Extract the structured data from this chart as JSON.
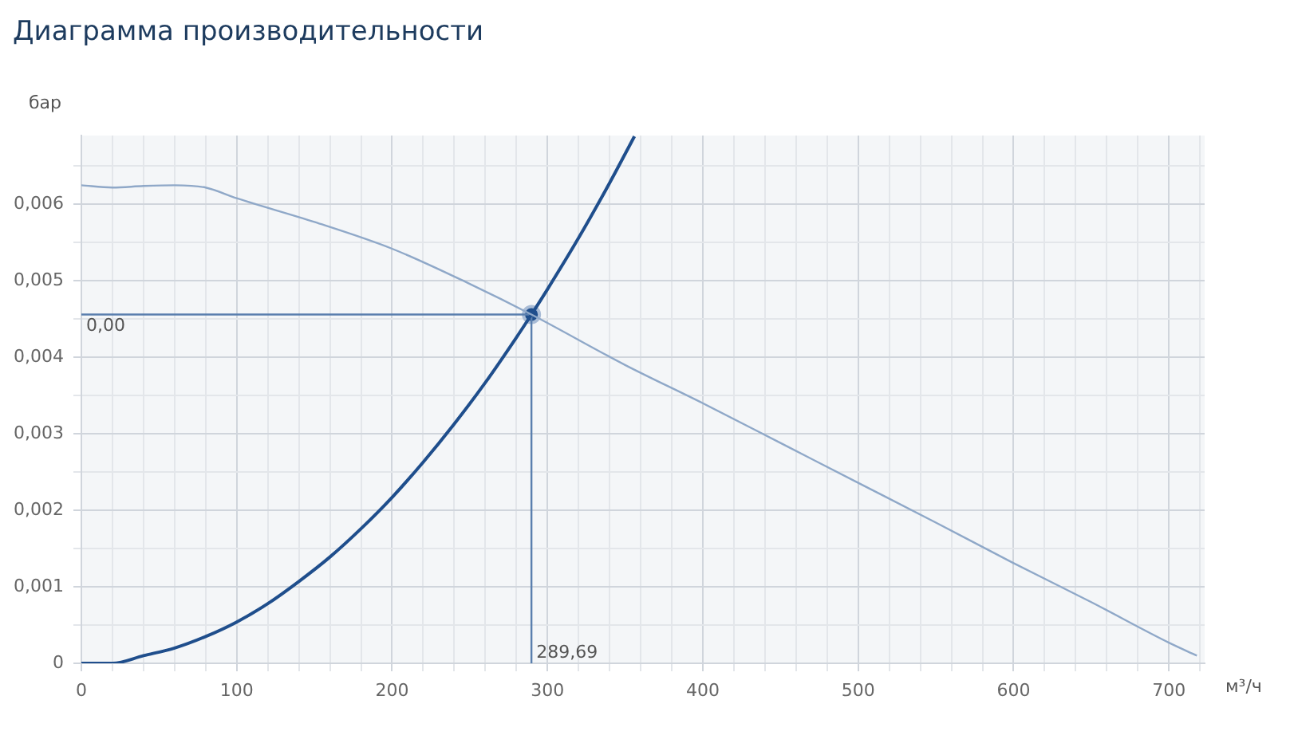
{
  "chart_data": {
    "type": "line",
    "title": "Диаграмма производительности",
    "xlabel": "м³/ч",
    "ylabel": "бар",
    "xlim": [
      0,
      723
    ],
    "ylim": [
      0,
      0.0069
    ],
    "xticks": [
      0,
      {
        "value": 20,
        "label": null
      },
      {
        "value": 40,
        "label": null
      },
      {
        "value": 60,
        "label": null
      },
      {
        "value": 80,
        "label": null
      },
      100,
      {
        "value": 120,
        "label": null
      },
      {
        "value": 140,
        "label": null
      },
      {
        "value": 160,
        "label": null
      },
      {
        "value": 180,
        "label": null
      },
      200,
      {
        "value": 220,
        "label": null
      },
      {
        "value": 240,
        "label": null
      },
      {
        "value": 260,
        "label": null
      },
      {
        "value": 280,
        "label": null
      },
      300,
      {
        "value": 320,
        "label": null
      },
      {
        "value": 340,
        "label": null
      },
      {
        "value": 360,
        "label": null
      },
      {
        "value": 380,
        "label": null
      },
      400,
      {
        "value": 420,
        "label": null
      },
      {
        "value": 440,
        "label": null
      },
      {
        "value": 460,
        "label": null
      },
      {
        "value": 480,
        "label": null
      },
      500,
      {
        "value": 520,
        "label": null
      },
      {
        "value": 540,
        "label": null
      },
      {
        "value": 560,
        "label": null
      },
      {
        "value": 580,
        "label": null
      },
      600,
      {
        "value": 620,
        "label": null
      },
      {
        "value": 640,
        "label": null
      },
      {
        "value": 660,
        "label": null
      },
      {
        "value": 680,
        "label": null
      },
      700,
      {
        "value": 720,
        "label": null
      }
    ],
    "yticks": [
      0,
      {
        "value": 0.0005,
        "label": null
      },
      {
        "value": 0.001,
        "label": "0,001"
      },
      {
        "value": 0.0015,
        "label": null
      },
      {
        "value": 0.002,
        "label": "0,002"
      },
      {
        "value": 0.0025,
        "label": null
      },
      {
        "value": 0.003,
        "label": "0,003"
      },
      {
        "value": 0.0035,
        "label": null
      },
      {
        "value": 0.004,
        "label": "0,004"
      },
      {
        "value": 0.0045,
        "label": null
      },
      {
        "value": 0.005,
        "label": "0,005"
      },
      {
        "value": 0.0055,
        "label": null
      },
      {
        "value": 0.006,
        "label": "0,006"
      },
      {
        "value": 0.0065,
        "label": null
      }
    ],
    "grid": true,
    "legend": false,
    "series": [
      {
        "type": "line",
        "color": "#8fa8c8",
        "marker": "none",
        "x": [
          0,
          20,
          40,
          60,
          80,
          100,
          150,
          200,
          250,
          289.69,
          350,
          400,
          450,
          500,
          550,
          600,
          650,
          700,
          718
        ],
        "values": [
          0.00625,
          0.00622,
          0.00624,
          0.00625,
          0.00622,
          0.00608,
          0.00577,
          0.00542,
          0.00496,
          0.00456,
          0.0039,
          0.0034,
          0.00288,
          0.00236,
          0.00184,
          0.00131,
          0.0008,
          0.00027,
          0.0001
        ]
      },
      {
        "type": "line",
        "color": "#1f4e8c",
        "marker": "none",
        "x": [
          0,
          20,
          40,
          60,
          80,
          100,
          120,
          140,
          160,
          180,
          200,
          220,
          240,
          260,
          280,
          289.69,
          300,
          320,
          340,
          356
        ],
        "values": [
          0,
          0,
          0.0001,
          0.0002,
          0.00035,
          0.00054,
          0.00078,
          0.00107,
          0.00139,
          0.00176,
          0.00217,
          0.00263,
          0.00313,
          0.00367,
          0.00426,
          0.00456,
          0.00489,
          0.00556,
          0.00628,
          0.00689
        ]
      },
      {
        "type": "line",
        "color": "#5a7fae",
        "marker": "none",
        "x": [
          0,
          289.69,
          289.69
        ],
        "values": [
          0.00456,
          0.00456,
          0
        ]
      },
      {
        "type": "scatter",
        "color": "#1f4e8c",
        "marker": "circle",
        "x": [
          289.69
        ],
        "values": [
          0.00456
        ]
      }
    ],
    "annotations": [
      {
        "text": "0,00",
        "x": 0,
        "y": 0.00456
      },
      {
        "text": "289,69",
        "x": 289.69,
        "y": 0
      }
    ]
  }
}
